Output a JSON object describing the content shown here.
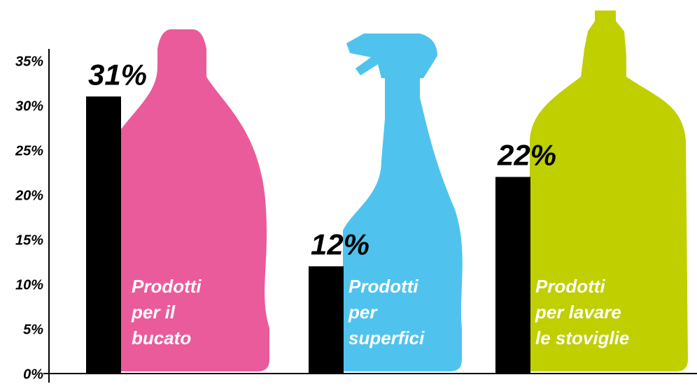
{
  "chart_data": {
    "type": "bar",
    "categories": [
      [
        "Prodotti",
        "per il",
        "bucato"
      ],
      [
        "Prodotti",
        "per",
        "superfici"
      ],
      [
        "Prodotti",
        "per lavare",
        "le stoviglie"
      ]
    ],
    "values": [
      31,
      12,
      22
    ],
    "value_labels": [
      "31%",
      "12%",
      "22%"
    ],
    "color": "#000000",
    "ylim": [
      0,
      35
    ],
    "yticks": [
      {
        "value": 0,
        "label": "0%"
      },
      {
        "value": 5,
        "label": "5%"
      },
      {
        "value": 10,
        "label": "10%"
      },
      {
        "value": 15,
        "label": "15%"
      },
      {
        "value": 20,
        "label": "20%"
      },
      {
        "value": 25,
        "label": "25%"
      },
      {
        "value": 30,
        "label": "30%"
      },
      {
        "value": 35,
        "label": "35%"
      }
    ],
    "grid": false
  }
}
